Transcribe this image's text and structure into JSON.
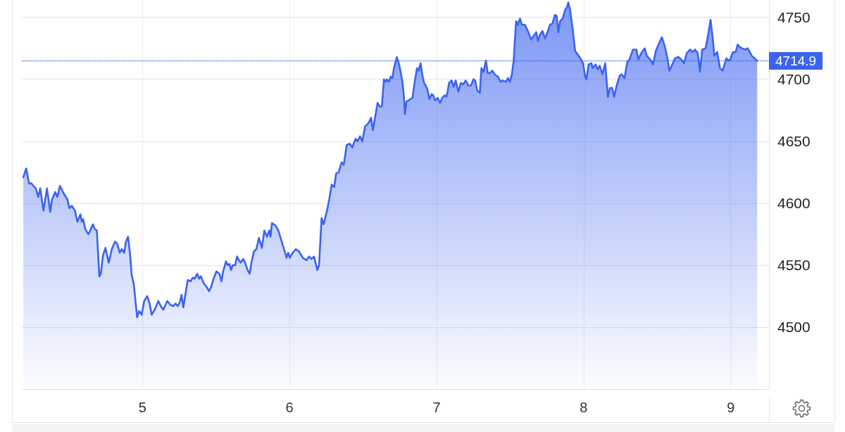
{
  "chart_data": {
    "type": "area",
    "x": [
      4.19,
      4.21,
      4.229,
      4.246,
      4.258,
      4.275,
      4.292,
      4.305,
      4.327,
      4.351,
      4.373,
      4.385,
      4.407,
      4.422,
      4.439,
      4.464,
      4.49,
      4.503,
      4.52,
      4.541,
      4.558,
      4.578,
      4.588,
      4.597,
      4.612,
      4.632,
      4.642,
      4.663,
      4.676,
      4.69,
      4.707,
      4.717,
      4.732,
      4.749,
      4.771,
      4.792,
      4.814,
      4.829,
      4.846,
      4.859,
      4.876,
      4.888,
      4.902,
      4.915,
      4.927,
      4.941,
      4.964,
      4.978,
      4.995,
      5.012,
      5.032,
      5.049,
      5.063,
      5.083,
      5.108,
      5.125,
      5.142,
      5.169,
      5.19,
      5.21,
      5.225,
      5.241,
      5.254,
      5.266,
      5.278,
      5.308,
      5.329,
      5.342,
      5.354,
      5.373,
      5.385,
      5.397,
      5.419,
      5.439,
      5.453,
      5.469,
      5.483,
      5.503,
      5.524,
      5.537,
      5.549,
      5.568,
      5.58,
      5.592,
      5.602,
      5.614,
      5.631,
      5.644,
      5.656,
      5.668,
      5.685,
      5.698,
      5.715,
      5.729,
      5.741,
      5.758,
      5.775,
      5.792,
      5.812,
      5.829,
      5.846,
      5.863,
      5.871,
      5.881,
      5.905,
      5.924,
      5.945,
      5.962,
      5.98,
      5.991,
      6.002,
      6.022,
      6.043,
      6.065,
      6.09,
      6.116,
      6.133,
      6.15,
      6.167,
      6.189,
      6.201,
      6.218,
      6.232,
      6.253,
      6.27,
      6.287,
      6.304,
      6.317,
      6.334,
      6.355,
      6.369,
      6.389,
      6.41,
      6.427,
      6.449,
      6.462,
      6.48,
      6.495,
      6.514,
      6.532,
      6.543,
      6.555,
      6.567,
      6.58,
      6.599,
      6.614,
      6.628,
      6.642,
      6.654,
      6.662,
      6.676,
      6.688,
      6.7,
      6.71,
      6.73,
      6.747,
      6.768,
      6.778,
      6.785,
      6.795,
      6.824,
      6.836,
      6.85,
      6.867,
      6.879,
      6.891,
      6.904,
      6.915,
      6.935,
      6.952,
      6.966,
      6.978,
      6.99,
      7.007,
      7.024,
      7.038,
      7.055,
      7.068,
      7.085,
      7.102,
      7.116,
      7.13,
      7.148,
      7.165,
      7.181,
      7.198,
      7.217,
      7.234,
      7.251,
      7.263,
      7.276,
      7.294,
      7.305,
      7.319,
      7.336,
      7.348,
      7.362,
      7.379,
      7.396,
      7.418,
      7.435,
      7.451,
      7.473,
      7.486,
      7.498,
      7.512,
      7.524,
      7.541,
      7.553,
      7.567,
      7.58,
      7.601,
      7.621,
      7.643,
      7.66,
      7.678,
      7.689,
      7.703,
      7.72,
      7.737,
      7.754,
      7.771,
      7.788,
      7.805,
      7.817,
      7.828,
      7.84,
      7.857,
      7.874,
      7.886,
      7.896,
      7.908,
      7.925,
      7.942,
      7.983,
      7.996,
      8.011,
      8.019,
      8.034,
      8.053,
      8.062,
      8.081,
      8.096,
      8.109,
      8.128,
      8.147,
      8.165,
      8.179,
      8.194,
      8.207,
      8.227,
      8.246,
      8.259,
      8.278,
      8.297,
      8.312,
      8.335,
      8.359,
      8.372,
      8.391,
      8.415,
      8.429,
      8.453,
      8.472,
      8.491,
      8.509,
      8.532,
      8.551,
      8.57,
      8.583,
      8.607,
      8.622,
      8.645,
      8.664,
      8.682,
      8.701,
      8.724,
      8.739,
      8.758,
      8.776,
      8.791,
      8.806,
      8.829,
      8.848,
      8.863,
      8.876,
      8.889,
      8.908,
      8.927,
      8.945,
      8.97,
      8.983,
      8.996,
      9.015,
      9.034,
      9.047,
      9.062,
      9.077,
      9.096,
      9.115,
      9.13,
      9.143,
      9.162,
      9.18
    ],
    "series": [
      {
        "color": "#3b63f0",
        "values": [
          4621,
          4628,
          4616,
          4616,
          4614,
          4612,
          4605,
          4612,
          4594,
          4612,
          4593,
          4603,
          4609,
          4605,
          4614,
          4608,
          4603,
          4596,
          4598,
          4594,
          4585,
          4591,
          4585,
          4587,
          4579,
          4575,
          4577,
          4583,
          4579,
          4578,
          4541,
          4543,
          4558,
          4564,
          4552,
          4563,
          4569,
          4567,
          4560,
          4563,
          4560,
          4569,
          4573,
          4560,
          4542,
          4535,
          4508,
          4513,
          4510,
          4521,
          4525,
          4519,
          4510,
          4514,
          4521,
          4517,
          4514,
          4521,
          4518,
          4517,
          4519,
          4517,
          4520,
          4526,
          4516,
          4538,
          4537,
          4540,
          4539,
          4543,
          4539,
          4541,
          4535,
          4532,
          4529,
          4533,
          4539,
          4545,
          4543,
          4537,
          4545,
          4553,
          4550,
          4551,
          4546,
          4550,
          4550,
          4557,
          4554,
          4552,
          4555,
          4552,
          4546,
          4543,
          4552,
          4561,
          4563,
          4572,
          4564,
          4578,
          4573,
          4578,
          4573,
          4584,
          4582,
          4578,
          4570,
          4563,
          4556,
          4560,
          4556,
          4560,
          4563,
          4561,
          4556,
          4554,
          4557,
          4555,
          4557,
          4546,
          4550,
          4588,
          4583,
          4593,
          4603,
          4615,
          4613,
          4624,
          4625,
          4633,
          4631,
          4647,
          4648,
          4645,
          4652,
          4650,
          4654,
          4650,
          4662,
          4664,
          4666,
          4669,
          4659,
          4668,
          4681,
          4678,
          4678,
          4700,
          4698,
          4700,
          4698,
          4702,
          4701,
          4709,
          4718,
          4711,
          4698,
          4686,
          4672,
          4682,
          4684,
          4685,
          4697,
          4709,
          4707,
          4713,
          4703,
          4697,
          4693,
          4684,
          4688,
          4687,
          4683,
          4685,
          4681,
          4685,
          4687,
          4686,
          4697,
          4699,
          4694,
          4699,
          4690,
          4697,
          4696,
          4699,
          4695,
          4695,
          4700,
          4699,
          4691,
          4689,
          4709,
          4706,
          4715,
          4705,
          4705,
          4707,
          4704,
          4702,
          4698,
          4699,
          4698,
          4701,
          4698,
          4704,
          4715,
          4747,
          4744,
          4749,
          4744,
          4744,
          4739,
          4732,
          4735,
          4738,
          4731,
          4736,
          4739,
          4733,
          4738,
          4744,
          4745,
          4752,
          4751,
          4738,
          4747,
          4749,
          4756,
          4758,
          4762,
          4756,
          4741,
          4723,
          4716,
          4713,
          4702,
          4700,
          4712,
          4713,
          4709,
          4712,
          4708,
          4711,
          4704,
          4713,
          4686,
          4693,
          4693,
          4686,
          4696,
          4703,
          4704,
          4701,
          4714,
          4716,
          4724,
          4724,
          4716,
          4721,
          4725,
          4719,
          4716,
          4712,
          4723,
          4728,
          4734,
          4727,
          4717,
          4707,
          4713,
          4717,
          4718,
          4716,
          4713,
          4721,
          4724,
          4722,
          4724,
          4721,
          4706,
          4724,
          4725,
          4737,
          4748,
          4735,
          4719,
          4722,
          4709,
          4707,
          4717,
          4715,
          4716,
          4722,
          4722,
          4728,
          4726,
          4725,
          4724,
          4725,
          4722,
          4719,
          4717,
          4714.9
        ]
      }
    ],
    "xlim": [
      4.18,
      9.26
    ],
    "xticks": [
      5,
      6,
      7,
      8,
      9
    ],
    "ylim": [
      4450,
      4764
    ],
    "yticks": [
      4500,
      4550,
      4600,
      4650,
      4700,
      4750
    ],
    "grid": true,
    "marker": "none",
    "ref_lines": [
      {
        "axis": "y",
        "value": 4714.9,
        "label": "4714.9",
        "color": "#3b63f0",
        "line_style": "dotted"
      }
    ]
  }
}
